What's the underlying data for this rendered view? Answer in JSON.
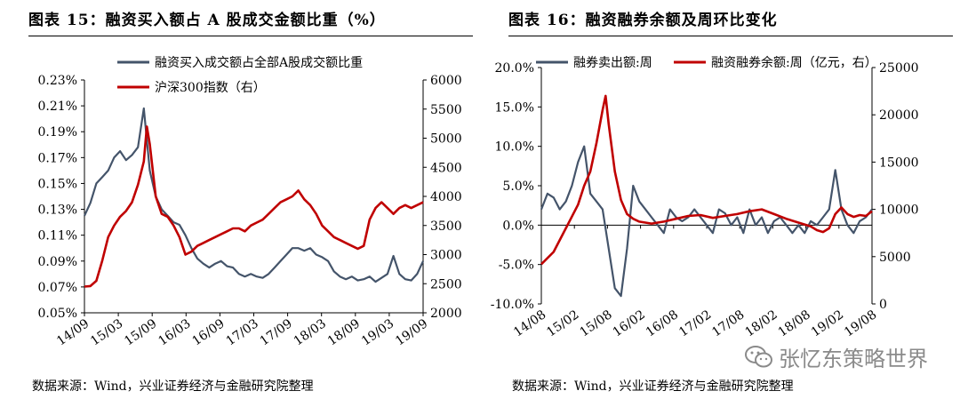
{
  "panels": [
    {
      "title": "图表 15：融资买入额占 A 股成交金额比重（%）",
      "source": "数据来源：Wind，兴业证券经济与金融研究院整理",
      "legend": [
        "融资买入成交额占全部A股成交额比重",
        "沪深300指数（右）"
      ]
    },
    {
      "title": "图表 16：融资融券余额及周环比变化",
      "source": "数据来源：Wind，兴业证券经济与金融研究院整理",
      "legend": [
        "融券卖出额:周",
        "融资融券余额:周（亿元，右）"
      ]
    }
  ],
  "watermark": {
    "text": "张忆东策略世界",
    "icon": "wechat-icon"
  },
  "colors": {
    "series_blue": "#44546A",
    "series_red": "#C00000"
  },
  "chart_data": [
    {
      "type": "line",
      "x_tick_labels": [
        "14/09",
        "15/03",
        "15/09",
        "16/03",
        "16/09",
        "17/03",
        "17/09",
        "18/03",
        "18/09",
        "19/03",
        "19/09"
      ],
      "y_left_tick_labels": [
        "0.05%",
        "0.07%",
        "0.09%",
        "0.11%",
        "0.13%",
        "0.15%",
        "0.17%",
        "0.19%",
        "0.21%",
        "0.23%"
      ],
      "y_right_tick_labels": [
        "2000",
        "2500",
        "3000",
        "3500",
        "4000",
        "4500",
        "5000",
        "5500",
        "6000"
      ],
      "ylim_left": [
        0.05,
        0.23
      ],
      "ylim_right": [
        2000,
        6000
      ],
      "grid": false,
      "legend_position": "top",
      "series": [
        {
          "name": "融资买入成交额占全部A股成交额比重",
          "axis": "left",
          "color": "#44546A",
          "points": [
            [
              0,
              0.125
            ],
            [
              2,
              0.135
            ],
            [
              4,
              0.15
            ],
            [
              6,
              0.155
            ],
            [
              8,
              0.16
            ],
            [
              10,
              0.17
            ],
            [
              12,
              0.175
            ],
            [
              14,
              0.168
            ],
            [
              16,
              0.172
            ],
            [
              18,
              0.178
            ],
            [
              20,
              0.208
            ],
            [
              22,
              0.16
            ],
            [
              24,
              0.14
            ],
            [
              26,
              0.13
            ],
            [
              28,
              0.125
            ],
            [
              30,
              0.12
            ],
            [
              32,
              0.118
            ],
            [
              34,
              0.11
            ],
            [
              36,
              0.1
            ],
            [
              38,
              0.092
            ],
            [
              40,
              0.088
            ],
            [
              42,
              0.085
            ],
            [
              44,
              0.088
            ],
            [
              46,
              0.09
            ],
            [
              48,
              0.086
            ],
            [
              50,
              0.085
            ],
            [
              52,
              0.08
            ],
            [
              54,
              0.078
            ],
            [
              56,
              0.08
            ],
            [
              58,
              0.078
            ],
            [
              60,
              0.077
            ],
            [
              62,
              0.08
            ],
            [
              64,
              0.085
            ],
            [
              66,
              0.09
            ],
            [
              68,
              0.095
            ],
            [
              70,
              0.1
            ],
            [
              72,
              0.1
            ],
            [
              74,
              0.098
            ],
            [
              76,
              0.1
            ],
            [
              78,
              0.095
            ],
            [
              80,
              0.093
            ],
            [
              82,
              0.09
            ],
            [
              84,
              0.082
            ],
            [
              86,
              0.078
            ],
            [
              88,
              0.076
            ],
            [
              90,
              0.078
            ],
            [
              92,
              0.075
            ],
            [
              94,
              0.076
            ],
            [
              96,
              0.078
            ],
            [
              98,
              0.074
            ],
            [
              100,
              0.077
            ],
            [
              102,
              0.08
            ],
            [
              104,
              0.094
            ],
            [
              106,
              0.08
            ],
            [
              108,
              0.076
            ],
            [
              110,
              0.075
            ],
            [
              112,
              0.08
            ],
            [
              114,
              0.09
            ]
          ]
        },
        {
          "name": "沪深300指数（右）",
          "axis": "right",
          "color": "#C00000",
          "points": [
            [
              0,
              2450
            ],
            [
              2,
              2460
            ],
            [
              4,
              2550
            ],
            [
              6,
              2900
            ],
            [
              8,
              3300
            ],
            [
              10,
              3500
            ],
            [
              12,
              3650
            ],
            [
              14,
              3750
            ],
            [
              16,
              3900
            ],
            [
              18,
              4200
            ],
            [
              20,
              4600
            ],
            [
              21,
              5200
            ],
            [
              22,
              4900
            ],
            [
              24,
              4000
            ],
            [
              26,
              3700
            ],
            [
              28,
              3650
            ],
            [
              30,
              3500
            ],
            [
              32,
              3300
            ],
            [
              34,
              3000
            ],
            [
              36,
              3050
            ],
            [
              38,
              3150
            ],
            [
              40,
              3200
            ],
            [
              42,
              3250
            ],
            [
              44,
              3300
            ],
            [
              46,
              3350
            ],
            [
              48,
              3400
            ],
            [
              50,
              3450
            ],
            [
              52,
              3450
            ],
            [
              54,
              3400
            ],
            [
              56,
              3500
            ],
            [
              58,
              3550
            ],
            [
              60,
              3600
            ],
            [
              62,
              3700
            ],
            [
              64,
              3800
            ],
            [
              66,
              3900
            ],
            [
              68,
              3950
            ],
            [
              70,
              4000
            ],
            [
              72,
              4100
            ],
            [
              74,
              3950
            ],
            [
              76,
              3850
            ],
            [
              78,
              3700
            ],
            [
              80,
              3500
            ],
            [
              82,
              3400
            ],
            [
              84,
              3300
            ],
            [
              86,
              3250
            ],
            [
              88,
              3200
            ],
            [
              90,
              3150
            ],
            [
              92,
              3100
            ],
            [
              94,
              3150
            ],
            [
              96,
              3600
            ],
            [
              98,
              3800
            ],
            [
              100,
              3900
            ],
            [
              102,
              3800
            ],
            [
              104,
              3700
            ],
            [
              106,
              3800
            ],
            [
              108,
              3850
            ],
            [
              110,
              3800
            ],
            [
              112,
              3850
            ],
            [
              114,
              3900
            ]
          ]
        }
      ]
    },
    {
      "type": "line",
      "x_tick_labels": [
        "14/08",
        "15/02",
        "15/08",
        "16/02",
        "16/08",
        "17/02",
        "17/08",
        "18/02",
        "18/08",
        "19/02",
        "19/08"
      ],
      "y_left_tick_labels": [
        "-10.0%",
        "-5.0%",
        "0.0%",
        "5.0%",
        "10.0%",
        "15.0%",
        "20.0%"
      ],
      "y_right_tick_labels": [
        "0",
        "5000",
        "10000",
        "15000",
        "20000",
        "25000"
      ],
      "ylim_left": [
        -10,
        20
      ],
      "ylim_right": [
        0,
        25000
      ],
      "grid": false,
      "legend_position": "top",
      "series": [
        {
          "name": "融券卖出额:周",
          "axis": "left",
          "color": "#44546A",
          "points": [
            [
              0,
              2
            ],
            [
              2,
              4
            ],
            [
              4,
              3.5
            ],
            [
              6,
              2
            ],
            [
              8,
              3
            ],
            [
              10,
              5
            ],
            [
              12,
              8
            ],
            [
              14,
              10
            ],
            [
              16,
              4
            ],
            [
              18,
              3
            ],
            [
              20,
              2
            ],
            [
              22,
              -3
            ],
            [
              24,
              -8
            ],
            [
              26,
              -9
            ],
            [
              28,
              -3
            ],
            [
              30,
              5
            ],
            [
              32,
              3
            ],
            [
              34,
              2
            ],
            [
              36,
              1
            ],
            [
              38,
              0
            ],
            [
              40,
              -1
            ],
            [
              42,
              2
            ],
            [
              44,
              1
            ],
            [
              46,
              0.5
            ],
            [
              48,
              1
            ],
            [
              50,
              2
            ],
            [
              52,
              1
            ],
            [
              54,
              0
            ],
            [
              56,
              -1
            ],
            [
              58,
              2
            ],
            [
              60,
              1.5
            ],
            [
              62,
              0
            ],
            [
              64,
              1
            ],
            [
              66,
              -1
            ],
            [
              68,
              2
            ],
            [
              70,
              0
            ],
            [
              72,
              1
            ],
            [
              74,
              -1
            ],
            [
              76,
              0.5
            ],
            [
              78,
              1
            ],
            [
              80,
              0
            ],
            [
              82,
              -1
            ],
            [
              84,
              0
            ],
            [
              86,
              -1
            ],
            [
              88,
              0.5
            ],
            [
              90,
              0
            ],
            [
              92,
              1
            ],
            [
              94,
              2
            ],
            [
              96,
              7
            ],
            [
              98,
              2
            ],
            [
              100,
              0
            ],
            [
              102,
              -1
            ],
            [
              104,
              0.5
            ],
            [
              106,
              1
            ],
            [
              108,
              2
            ]
          ]
        },
        {
          "name": "融资融券余额:周（亿元，右）",
          "axis": "right",
          "color": "#C00000",
          "points": [
            [
              0,
              4200
            ],
            [
              4,
              5500
            ],
            [
              8,
              8000
            ],
            [
              12,
              10500
            ],
            [
              14,
              12500
            ],
            [
              16,
              14000
            ],
            [
              18,
              17000
            ],
            [
              20,
              20500
            ],
            [
              21,
              22000
            ],
            [
              22,
              19000
            ],
            [
              24,
              14000
            ],
            [
              26,
              11000
            ],
            [
              28,
              9500
            ],
            [
              30,
              9000
            ],
            [
              32,
              8700
            ],
            [
              36,
              8500
            ],
            [
              40,
              8700
            ],
            [
              44,
              9000
            ],
            [
              48,
              9300
            ],
            [
              52,
              9400
            ],
            [
              56,
              9100
            ],
            [
              60,
              9300
            ],
            [
              64,
              9500
            ],
            [
              68,
              9800
            ],
            [
              72,
              10000
            ],
            [
              76,
              9500
            ],
            [
              80,
              9000
            ],
            [
              84,
              8600
            ],
            [
              88,
              8200
            ],
            [
              90,
              7800
            ],
            [
              92,
              7600
            ],
            [
              94,
              8000
            ],
            [
              96,
              9500
            ],
            [
              98,
              10200
            ],
            [
              100,
              9500
            ],
            [
              102,
              9200
            ],
            [
              104,
              9400
            ],
            [
              106,
              9300
            ],
            [
              108,
              9800
            ]
          ]
        }
      ]
    }
  ]
}
